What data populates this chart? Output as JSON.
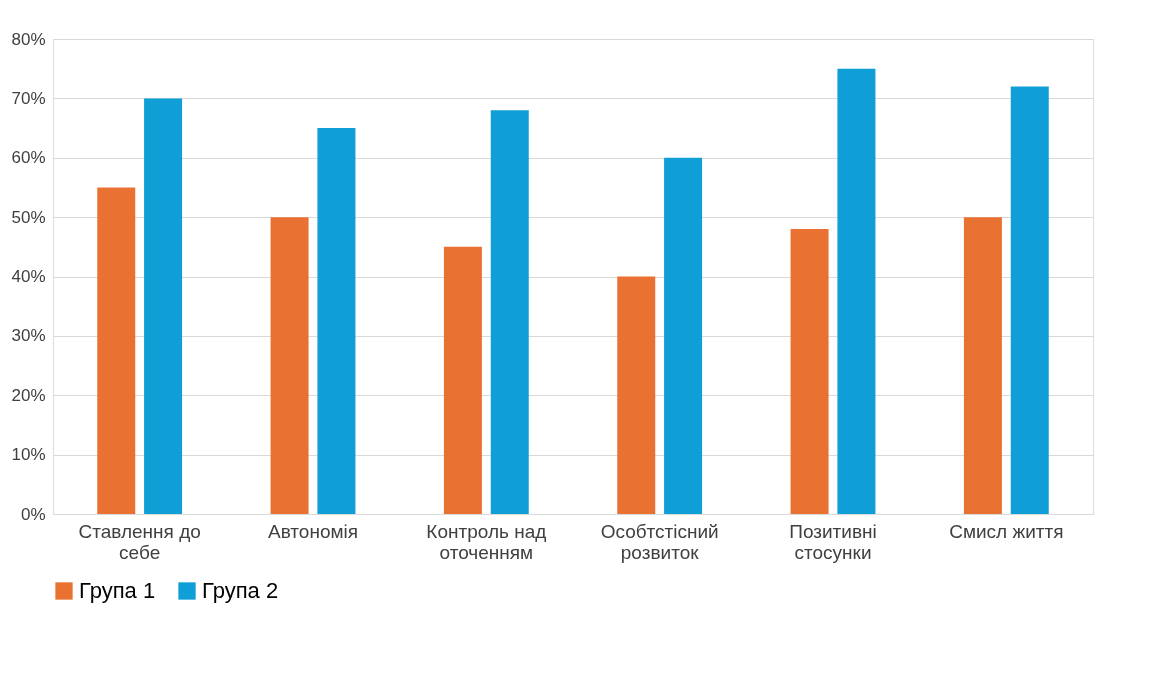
{
  "chart_data": {
    "type": "bar",
    "categories": [
      "Ставлення до себе",
      "Автономія",
      "Контроль над оточенням",
      "Особтстісний розвиток",
      "Позитивні стосунки",
      "Смисл життя"
    ],
    "series": [
      {
        "name": "Група 1",
        "color": "#e97132",
        "values": [
          55,
          50,
          45,
          40,
          48,
          50
        ]
      },
      {
        "name": "Група 2",
        "color": "#0f9ed5",
        "values": [
          70,
          65,
          68,
          60,
          75,
          72
        ]
      }
    ],
    "ylim": [
      0,
      80
    ],
    "yticks": [
      {
        "value": 0,
        "label": "0%"
      },
      {
        "value": 10,
        "label": "10%"
      },
      {
        "value": 20,
        "label": "20%"
      },
      {
        "value": 30,
        "label": "30%"
      },
      {
        "value": 40,
        "label": "40%"
      },
      {
        "value": 50,
        "label": "50%"
      },
      {
        "value": 60,
        "label": "60%"
      },
      {
        "value": 70,
        "label": "70%"
      },
      {
        "value": 80,
        "label": "80%"
      }
    ],
    "grid": "y",
    "legend": "bottom"
  }
}
